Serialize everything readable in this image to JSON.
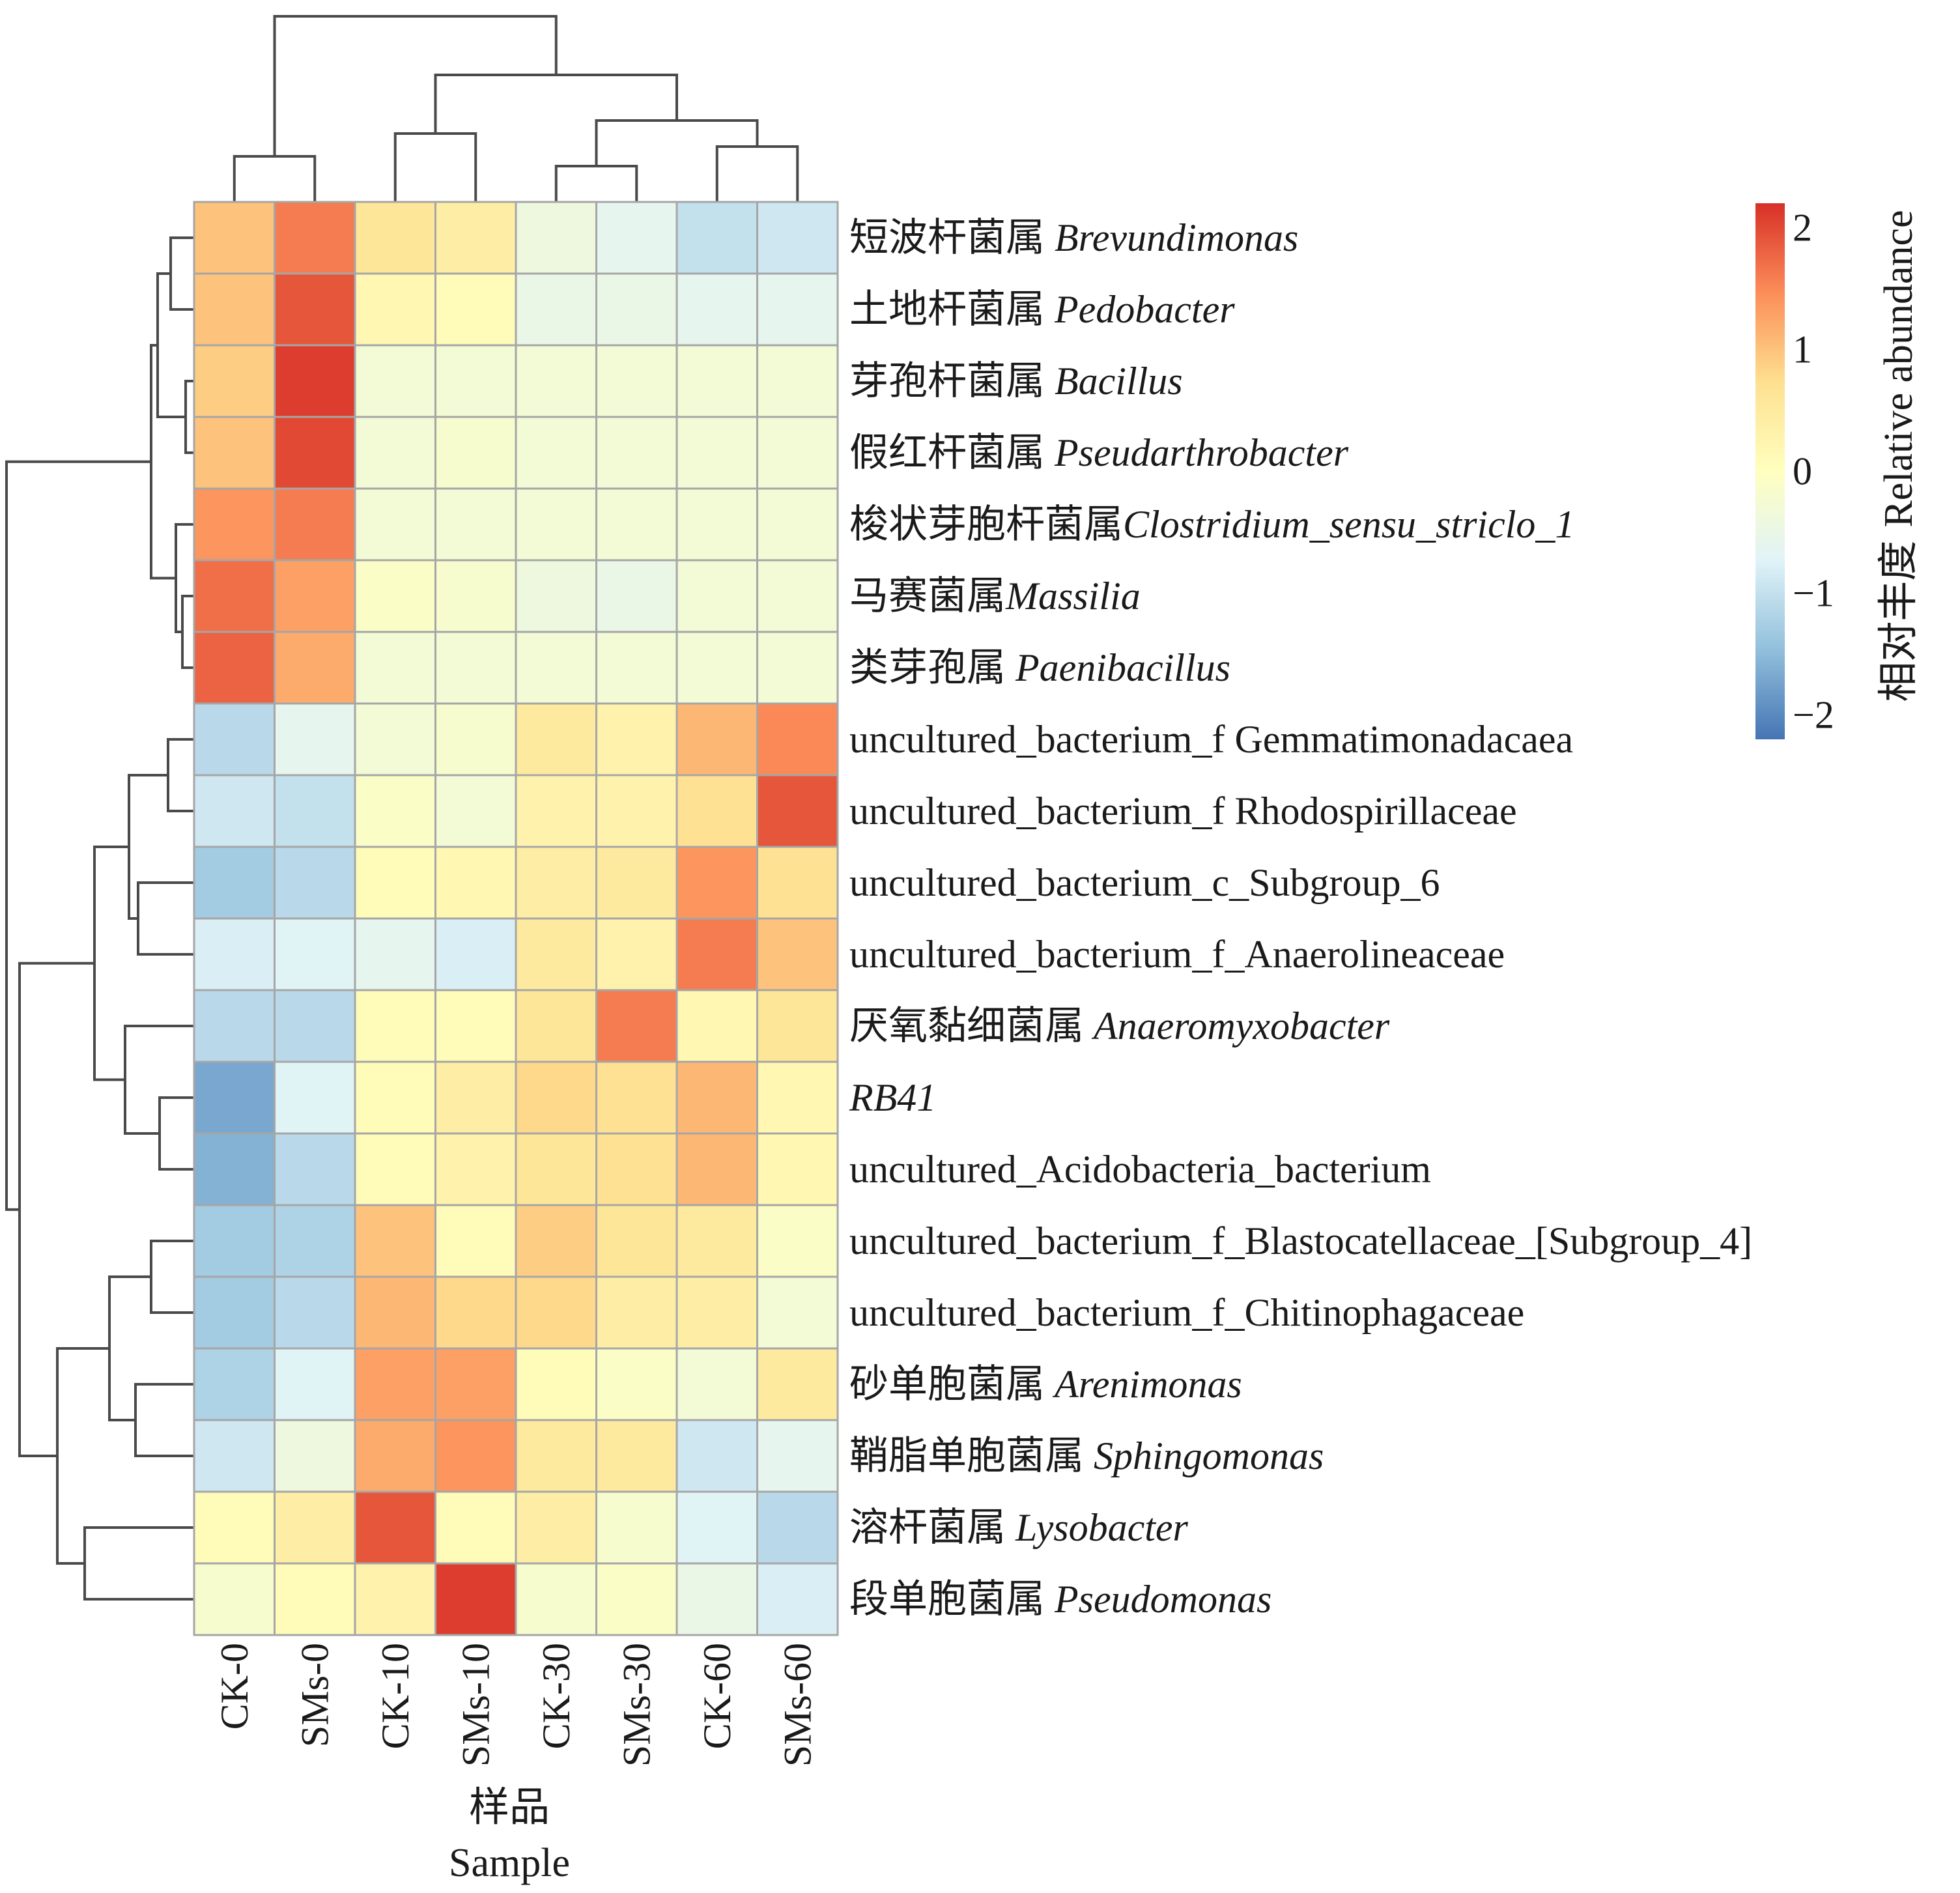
{
  "chart_data": {
    "type": "heatmap",
    "columns": [
      "CK-0",
      "SMs-0",
      "CK-10",
      "SMs-10",
      "CK-30",
      "SMs-30",
      "CK-60",
      "SMs-60"
    ],
    "rows": [
      {
        "cn": "短波杆菌属 ",
        "latin": "Brevundimonas",
        "italic": true
      },
      {
        "cn": "土地杆菌属 ",
        "latin": "Pedobacter",
        "italic": true
      },
      {
        "cn": "芽孢杆菌属 ",
        "latin": "Bacillus",
        "italic": true
      },
      {
        "cn": "假红杆菌属 ",
        "latin": "Pseudarthrobacter",
        "italic": true
      },
      {
        "cn": "梭状芽胞杆菌属",
        "latin": "Clostridium_sensu_striclo_1",
        "italic": true
      },
      {
        "cn": "马赛菌属",
        "latin": "Massilia",
        "italic": true
      },
      {
        "cn": "类芽孢属 ",
        "latin": "Paenibacillus",
        "italic": true
      },
      {
        "cn": "",
        "latin": "uncultured_bacterium_f Gemmatimonadacaea",
        "italic": false
      },
      {
        "cn": "",
        "latin": "uncultured_bacterium_f Rhodospirillaceae",
        "italic": false
      },
      {
        "cn": "",
        "latin": "uncultured_bacterium_c_Subgroup_6",
        "italic": false
      },
      {
        "cn": "",
        "latin": "uncultured_bacterium_f_Anaerolineaceae",
        "italic": false
      },
      {
        "cn": "厌氧黏细菌属 ",
        "latin": "Anaeromyxobacter",
        "italic": true
      },
      {
        "cn": "",
        "latin": "RB41",
        "italic": true
      },
      {
        "cn": "",
        "latin": "uncultured_Acidobacteria_bacterium",
        "italic": false
      },
      {
        "cn": "",
        "latin": "uncultured_bacterium_f_Blastocatellaceae_[Subgroup_4]",
        "italic": false
      },
      {
        "cn": "",
        "latin": "uncultured_bacterium_f_Chitinophagaceae",
        "italic": false
      },
      {
        "cn": "砂单胞菌属 ",
        "latin": "Arenimonas",
        "italic": true
      },
      {
        "cn": "鞘脂单胞菌属 ",
        "latin": "Sphingomonas",
        "italic": true
      },
      {
        "cn": "溶杆菌属 ",
        "latin": "Lysobacter",
        "italic": true
      },
      {
        "cn": "段单胞菌属 ",
        "latin": "Pseudomonas",
        "italic": true
      }
    ],
    "values": [
      [
        1.0,
        1.6,
        0.6,
        0.4,
        -0.4,
        -0.6,
        -1.0,
        -0.9
      ],
      [
        1.0,
        1.9,
        0.2,
        0.1,
        -0.5,
        -0.5,
        -0.6,
        -0.6
      ],
      [
        0.9,
        2.1,
        -0.3,
        -0.3,
        -0.3,
        -0.3,
        -0.3,
        -0.3
      ],
      [
        1.0,
        2.0,
        -0.3,
        -0.2,
        -0.3,
        -0.3,
        -0.3,
        -0.3
      ],
      [
        1.4,
        1.6,
        -0.3,
        -0.3,
        -0.3,
        -0.3,
        -0.3,
        -0.3
      ],
      [
        1.7,
        1.3,
        -0.1,
        -0.2,
        -0.4,
        -0.5,
        -0.3,
        -0.3
      ],
      [
        1.8,
        1.2,
        -0.3,
        -0.3,
        -0.3,
        -0.3,
        -0.3,
        -0.3
      ],
      [
        -1.1,
        -0.6,
        -0.3,
        -0.2,
        0.5,
        0.3,
        1.1,
        1.5
      ],
      [
        -0.9,
        -1.0,
        -0.1,
        -0.3,
        0.3,
        0.3,
        0.7,
        1.9
      ],
      [
        -1.3,
        -1.1,
        0.1,
        0.2,
        0.4,
        0.5,
        1.4,
        0.7
      ],
      [
        -0.8,
        -0.7,
        -0.6,
        -0.8,
        0.5,
        0.3,
        1.6,
        1.0
      ],
      [
        -1.1,
        -1.1,
        0.1,
        0.1,
        0.6,
        1.6,
        0.2,
        0.6
      ],
      [
        -1.7,
        -0.7,
        0.1,
        0.4,
        0.8,
        0.7,
        1.1,
        0.2
      ],
      [
        -1.6,
        -1.1,
        0.1,
        0.3,
        0.6,
        0.7,
        1.1,
        0.2
      ],
      [
        -1.3,
        -1.2,
        1.0,
        0.1,
        0.9,
        0.6,
        0.5,
        -0.1
      ],
      [
        -1.3,
        -1.1,
        1.1,
        0.8,
        0.8,
        0.4,
        0.4,
        -0.3
      ],
      [
        -1.2,
        -0.7,
        1.3,
        1.3,
        0.1,
        -0.1,
        -0.3,
        0.5
      ],
      [
        -0.9,
        -0.4,
        1.2,
        1.4,
        0.5,
        0.5,
        -0.9,
        -0.6
      ],
      [
        0.1,
        0.4,
        1.9,
        0.1,
        0.4,
        -0.2,
        -0.7,
        -1.1
      ],
      [
        -0.2,
        0.1,
        0.3,
        2.1,
        -0.2,
        -0.1,
        -0.5,
        -0.8
      ]
    ],
    "colorbar": {
      "min": -2.2,
      "max": 2.2,
      "ticks": [
        2,
        1,
        0,
        -1,
        -2
      ],
      "tick_labels": [
        "2",
        "1",
        "0",
        "−1",
        "−2"
      ],
      "colors": [
        "#4575b4",
        "#91bfdb",
        "#e0f3f8",
        "#ffffbf",
        "#fee090",
        "#fc8d59",
        "#d73027"
      ],
      "title_cn": "相对丰度",
      "title_en": "Relative abundance"
    },
    "xlabel_cn": "样品",
    "xlabel_en": "Sample"
  }
}
